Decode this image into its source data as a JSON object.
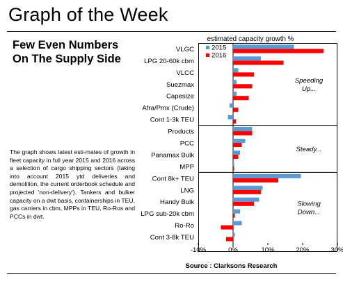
{
  "page": {
    "title": "Graph of the Week",
    "headline_lines": [
      "Few Even Numbers",
      "On The Supply Side"
    ],
    "description": "The graph shows latest esti-mates of growth in fleet capacity in full year 2015 and 2016 across a selection of cargo shipping sectors (taking into account 2015 ytd deliveries and demolition, the current orderbook schedule and projected 'non-delivery'). Tankers and bulker capacity on a dwt basis, containerships in TEU, gas carriers in cbm, MPPs in TEU, Ro-Ros and PCCs in dwt.",
    "source": "Source : Clarksons Research"
  },
  "colors": {
    "series_2015": "#5b9bd5",
    "series_2016": "#ff0000"
  },
  "chart_data": {
    "type": "bar",
    "orientation": "horizontal",
    "title": "estimated capacity growth %",
    "categories": [
      "VLGC",
      "LPG 20-60k cbm",
      "VLCC",
      "Suezmax",
      "Capesize",
      "Afra/Pmx (Crude)",
      "Cont 1-3k TEU",
      "Products",
      "PCC",
      "Panamax Bulk",
      "MPP",
      "Cont 8k+ TEU",
      "LNG",
      "Handy Bulk",
      "LPG sub-20k cbm",
      "Ro-Ro",
      "Cont 3-8k TEU"
    ],
    "series": [
      {
        "name": "2015",
        "values": [
          17.5,
          8,
          1.5,
          1,
          1,
          -1,
          -1.5,
          5.5,
          3.5,
          2,
          0.3,
          19.5,
          8.5,
          7.5,
          2,
          2.5,
          0.5
        ]
      },
      {
        "name": "2016",
        "values": [
          26,
          14.5,
          6,
          5.5,
          4.5,
          1.5,
          0.8,
          5.5,
          2.5,
          1.5,
          0.3,
          13,
          8,
          6,
          0.5,
          -3.5,
          -2
        ]
      }
    ],
    "xlim": [
      -10,
      30
    ],
    "xticks": [
      "-10%",
      "0%",
      "10%",
      "20%",
      "30%"
    ],
    "xtick_values": [
      -10,
      0,
      10,
      20,
      30
    ],
    "legend_position": "top-left",
    "groups": [
      {
        "annotation": [
          "Speeding",
          "Up..."
        ],
        "start": 0,
        "end": 6
      },
      {
        "annotation": [
          "Steady..."
        ],
        "start": 7,
        "end": 10
      },
      {
        "annotation": [
          "Slowing",
          "Down..."
        ],
        "start": 11,
        "end": 16
      }
    ]
  }
}
